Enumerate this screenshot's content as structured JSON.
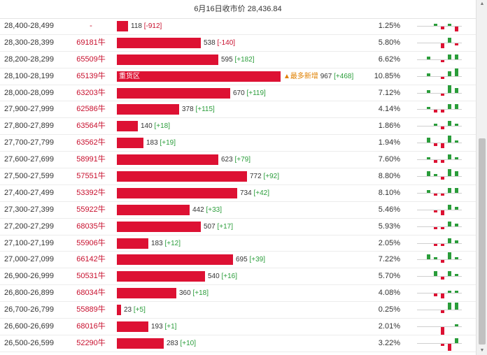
{
  "header": {
    "title": "6月16日收市价 28,436.84"
  },
  "colors": {
    "bar": "#dd1133",
    "up": "#2a9d3a",
    "down": "#dd1133",
    "code": "#c8102e"
  },
  "rows": [
    {
      "range": "28,400-28,499",
      "code": "-",
      "value": "118",
      "delta": "[-912]",
      "dsign": "neg",
      "pct": "1.25%",
      "bar_frac": 0.027,
      "spark": [
        0,
        0,
        1,
        -1,
        1,
        -2
      ]
    },
    {
      "range": "28,300-28,399",
      "code": "69181牛",
      "value": "538",
      "delta": "[-140]",
      "dsign": "neg",
      "pct": "5.80%",
      "bar_frac": 0.203,
      "spark": [
        0,
        0,
        0,
        -2,
        2,
        -1
      ]
    },
    {
      "range": "28,200-28,299",
      "code": "65509牛",
      "value": "595",
      "delta": "[+182]",
      "dsign": "pos",
      "pct": "6.62%",
      "bar_frac": 0.245,
      "spark": [
        0,
        1,
        0,
        -1,
        2,
        2
      ]
    },
    {
      "range": "28,100-28,199",
      "code": "65139牛",
      "value": "967",
      "delta": "[+468]",
      "dsign": "pos",
      "pct": "10.85%",
      "bar_frac": 0.396,
      "label": "重货区",
      "tag": "▲最多新增",
      "spark": [
        0,
        1,
        0,
        -1,
        2,
        3
      ]
    },
    {
      "range": "28,000-28,099",
      "code": "63203牛",
      "value": "670",
      "delta": "[+119]",
      "dsign": "pos",
      "pct": "7.12%",
      "bar_frac": 0.275,
      "spark": [
        0,
        1,
        0,
        -1,
        3,
        2
      ]
    },
    {
      "range": "27,900-27,999",
      "code": "62586牛",
      "value": "378",
      "delta": "[+115]",
      "dsign": "pos",
      "pct": "4.14%",
      "bar_frac": 0.151,
      "spark": [
        0,
        1,
        -1,
        -1,
        2,
        2
      ]
    },
    {
      "range": "27,800-27,899",
      "code": "63564牛",
      "value": "140",
      "delta": "[+18]",
      "dsign": "pos",
      "pct": "1.86%",
      "bar_frac": 0.05,
      "spark": [
        0,
        0,
        1,
        -1,
        2,
        1
      ]
    },
    {
      "range": "27,700-27,799",
      "code": "63562牛",
      "value": "183",
      "delta": "[+19]",
      "dsign": "pos",
      "pct": "1.94%",
      "bar_frac": 0.064,
      "spark": [
        0,
        2,
        -1,
        -2,
        3,
        1
      ]
    },
    {
      "range": "27,600-27,699",
      "code": "58991牛",
      "value": "623",
      "delta": "[+79]",
      "dsign": "pos",
      "pct": "7.60%",
      "bar_frac": 0.245,
      "spark": [
        0,
        1,
        -1,
        -1,
        2,
        1
      ]
    },
    {
      "range": "27,500-27,599",
      "code": "57551牛",
      "value": "772",
      "delta": "[+92]",
      "dsign": "pos",
      "pct": "8.80%",
      "bar_frac": 0.316,
      "spark": [
        0,
        2,
        1,
        -1,
        3,
        2
      ]
    },
    {
      "range": "27,400-27,499",
      "code": "53392牛",
      "value": "734",
      "delta": "[+42]",
      "dsign": "pos",
      "pct": "8.10%",
      "bar_frac": 0.292,
      "spark": [
        0,
        1,
        -1,
        -1,
        2,
        2
      ]
    },
    {
      "range": "27,300-27,399",
      "code": "55922牛",
      "value": "442",
      "delta": "[+33]",
      "dsign": "pos",
      "pct": "5.46%",
      "bar_frac": 0.177,
      "spark": [
        0,
        0,
        -1,
        -2,
        2,
        1
      ]
    },
    {
      "range": "27,200-27,299",
      "code": "68035牛",
      "value": "507",
      "delta": "[+17]",
      "dsign": "pos",
      "pct": "5.93%",
      "bar_frac": 0.203,
      "spark": [
        0,
        0,
        -1,
        -1,
        2,
        1
      ]
    },
    {
      "range": "27,100-27,199",
      "code": "55906牛",
      "value": "183",
      "delta": "[+12]",
      "dsign": "pos",
      "pct": "2.05%",
      "bar_frac": 0.077,
      "spark": [
        0,
        0,
        -1,
        -1,
        2,
        1
      ]
    },
    {
      "range": "27,000-27,099",
      "code": "66142牛",
      "value": "695",
      "delta": "[+39]",
      "dsign": "pos",
      "pct": "7.22%",
      "bar_frac": 0.281,
      "spark": [
        0,
        2,
        1,
        -1,
        3,
        1
      ]
    },
    {
      "range": "26,900-26,999",
      "code": "50531牛",
      "value": "540",
      "delta": "[+16]",
      "dsign": "pos",
      "pct": "5.70%",
      "bar_frac": 0.214,
      "spark": [
        0,
        0,
        2,
        -1,
        2,
        1
      ]
    },
    {
      "range": "26,800-26,899",
      "code": "68034牛",
      "value": "360",
      "delta": "[+18]",
      "dsign": "pos",
      "pct": "4.08%",
      "bar_frac": 0.144,
      "spark": [
        0,
        0,
        -1,
        -2,
        1,
        1
      ]
    },
    {
      "range": "26,700-26,799",
      "code": "55889牛",
      "value": "23",
      "delta": "[+5]",
      "dsign": "pos",
      "pct": "0.25%",
      "bar_frac": 0.01,
      "spark": [
        0,
        0,
        0,
        -1,
        3,
        3
      ]
    },
    {
      "range": "26,600-26,699",
      "code": "68016牛",
      "value": "193",
      "delta": "[+1]",
      "dsign": "pos",
      "pct": "2.01%",
      "bar_frac": 0.077,
      "spark": [
        0,
        0,
        0,
        -3,
        0,
        1
      ]
    },
    {
      "range": "26,500-26,599",
      "code": "52290牛",
      "value": "283",
      "delta": "[+10]",
      "dsign": "pos",
      "pct": "3.22%",
      "bar_frac": 0.113,
      "spark": [
        0,
        0,
        0,
        -1,
        -3,
        2
      ]
    }
  ]
}
